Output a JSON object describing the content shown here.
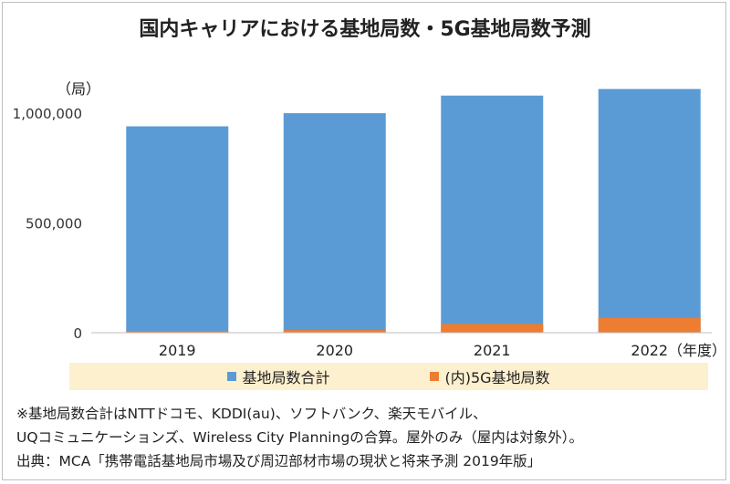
{
  "chart_data": {
    "type": "bar",
    "stacked": false,
    "title": "国内キャリアにおける基地局数・5G基地局数予測",
    "ylabel": "（局）",
    "xlabel": "（年度）",
    "categories": [
      "2019",
      "2020",
      "2021",
      "2022"
    ],
    "series": [
      {
        "name": "基地局数合計",
        "values": [
          940000,
          1000000,
          1080000,
          1110000
        ],
        "color": "#5b9bd5"
      },
      {
        "name": "(内)5G基地局数",
        "values": [
          6000,
          12000,
          40000,
          67000
        ],
        "color": "#ed7d31"
      }
    ],
    "yticks": [
      "0",
      "500,000",
      "1,000,000"
    ],
    "ytick_values": [
      0,
      500000,
      1000000
    ],
    "ylim": [
      0,
      1150000
    ],
    "grid": false,
    "legend_position": "bottom"
  },
  "notes": [
    "※基地局数合計はNTTドコモ、KDDI(au)、ソフトバンク、楽天モバイル、",
    "UQコミュニケーションズ、Wireless City Planningの合算。屋外のみ（屋内は対象外）。",
    "出典：MCA「携帯電話基地局市場及び周辺部材市場の現状と将来予測 2019年版」"
  ]
}
